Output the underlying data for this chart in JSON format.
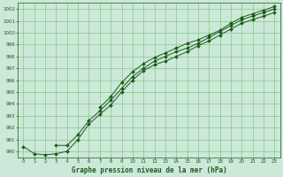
{
  "x": [
    0,
    1,
    2,
    3,
    4,
    5,
    6,
    7,
    8,
    9,
    10,
    11,
    12,
    13,
    14,
    15,
    16,
    17,
    18,
    19,
    20,
    21,
    22,
    23
  ],
  "line1": [
    990.4,
    989.8,
    989.7,
    989.8,
    990.0,
    991.0,
    992.3,
    993.1,
    993.9,
    995.0,
    996.0,
    996.8,
    997.3,
    997.6,
    998.0,
    998.4,
    998.9,
    999.3,
    999.8,
    1000.3,
    1000.8,
    1001.1,
    1001.4,
    1001.7
  ],
  "line2": [
    null,
    null,
    null,
    990.5,
    990.5,
    991.4,
    992.6,
    993.4,
    994.3,
    995.3,
    996.3,
    997.0,
    997.6,
    998.0,
    998.4,
    998.7,
    999.1,
    999.6,
    1000.1,
    1000.6,
    1001.1,
    1001.4,
    1001.7,
    1002.0
  ],
  "line3": [
    null,
    null,
    null,
    null,
    null,
    null,
    null,
    993.7,
    994.6,
    995.8,
    996.7,
    997.4,
    997.9,
    998.3,
    998.7,
    999.1,
    999.4,
    999.8,
    1000.2,
    1000.8,
    1001.3,
    1001.6,
    1001.9,
    1002.2
  ],
  "line_color": "#1a5c1a",
  "bg_color": "#cce8d8",
  "grid_color": "#5cb85c",
  "xlabel": "Graphe pression niveau de la mer (hPa)",
  "ylim": [
    989.5,
    1002.5
  ],
  "xlim": [
    -0.5,
    23.5
  ],
  "yticks": [
    990,
    991,
    992,
    993,
    994,
    995,
    996,
    997,
    998,
    999,
    1000,
    1001,
    1002
  ],
  "xticks": [
    0,
    1,
    2,
    3,
    4,
    5,
    6,
    7,
    8,
    9,
    10,
    11,
    12,
    13,
    14,
    15,
    16,
    17,
    18,
    19,
    20,
    21,
    22,
    23
  ]
}
